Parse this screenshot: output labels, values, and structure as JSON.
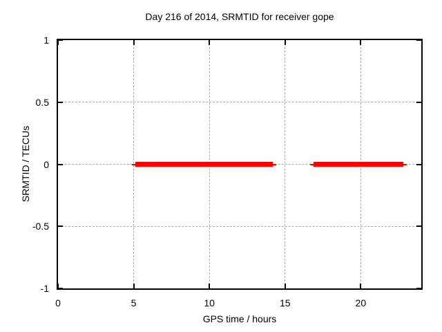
{
  "chart_data": {
    "type": "line",
    "title": "Day 216 of 2014, SRMTID for receiver gope",
    "xlabel": "GPS time / hours",
    "ylabel": "SRMTID / TECUs",
    "xlim": [
      0,
      24
    ],
    "ylim": [
      -1,
      1
    ],
    "xticks": [
      0,
      5,
      10,
      15,
      20
    ],
    "xtick_labels": [
      "0",
      "5",
      "10",
      "15",
      "20"
    ],
    "yticks": [
      1,
      0.5,
      0,
      -0.5,
      -1
    ],
    "ytick_labels": [
      "1",
      "0.5",
      "0",
      "-0.5",
      "-1"
    ],
    "grid": true,
    "legend": "none",
    "series": [
      {
        "name": "SRMTID",
        "color": "#ff0000",
        "segments": [
          {
            "x_start": 5.1,
            "x_end": 14.2,
            "y": 0
          },
          {
            "x_start": 16.9,
            "x_end": 22.8,
            "y": 0
          }
        ]
      }
    ]
  },
  "colors": {
    "background": "#ffffff",
    "border": "#000000",
    "grid": "#aaaaaa",
    "series_red": "#ff0000"
  }
}
